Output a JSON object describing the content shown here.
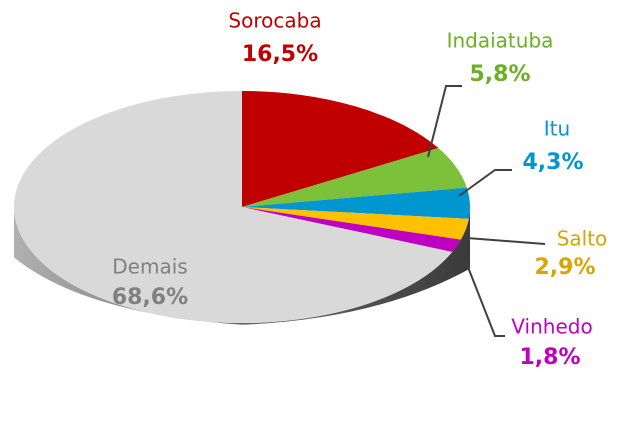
{
  "chart_data": {
    "type": "pie",
    "categories": [
      "Sorocaba",
      "Indaiatuba",
      "Itu",
      "Salto",
      "Vinhedo",
      "Demais"
    ],
    "values": [
      16.5,
      5.8,
      4.3,
      2.9,
      1.8,
      68.6
    ],
    "value_labels": [
      "16,5%",
      "5,8%",
      "4,3%",
      "2,9%",
      "1,8%",
      "68,6%"
    ],
    "colors": [
      "#c00000",
      "#7dc13a",
      "#0097d0",
      "#ffc000",
      "#c000c0",
      "#d9d9d9"
    ]
  }
}
